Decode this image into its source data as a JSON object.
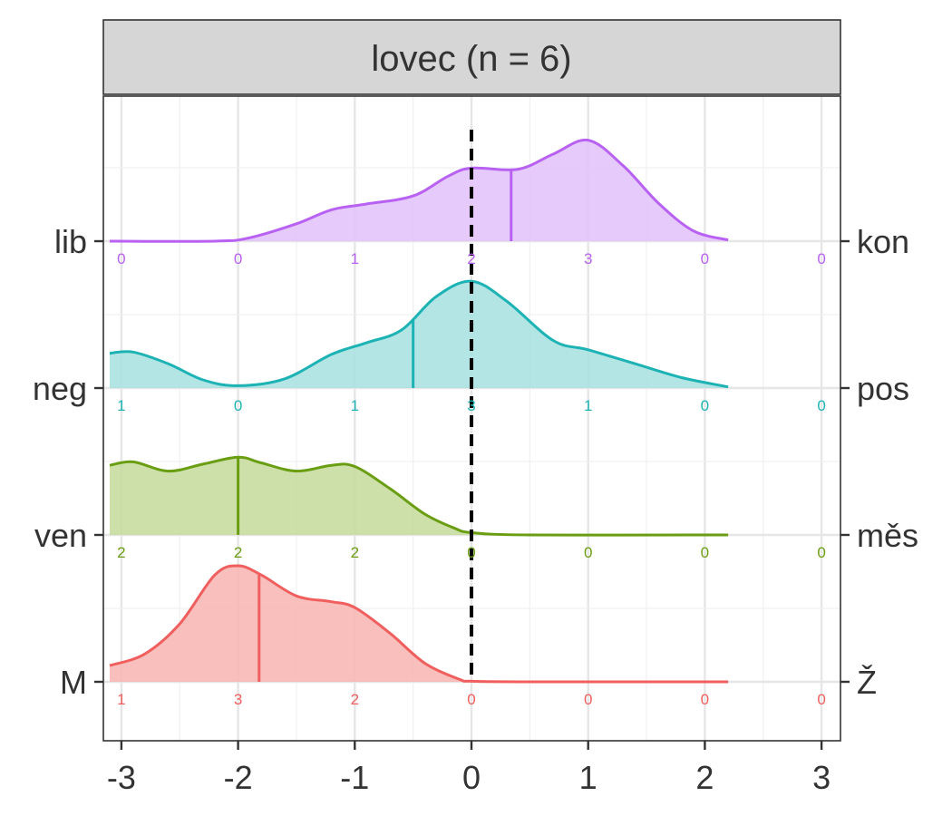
{
  "chart_data": {
    "type": "ridgeline-density",
    "title": "lovec (n = 6)",
    "xlim": [
      -3.1,
      3.15
    ],
    "xticks": [
      -3,
      -2,
      -1,
      0,
      1,
      2,
      3
    ],
    "xtick_labels": [
      "-3",
      "-2",
      "-1",
      "0",
      "1",
      "2",
      "3"
    ],
    "reference_line_x": 0,
    "grid": true,
    "legend": "none",
    "rows": [
      {
        "left_label": "M",
        "right_label": "Ž",
        "color": "#F05E5E",
        "fill": "#F8B4B2",
        "mean": -1.82,
        "counts_x": [
          -3,
          -2,
          -1,
          0,
          1,
          2,
          3
        ],
        "counts": [
          "1",
          "3",
          "2",
          "0",
          "0",
          "0",
          "0"
        ],
        "density": [
          [
            -3.1,
            0.14
          ],
          [
            -2.8,
            0.24
          ],
          [
            -2.5,
            0.5
          ],
          [
            -2.2,
            0.92
          ],
          [
            -2.0,
            1.0
          ],
          [
            -1.8,
            0.92
          ],
          [
            -1.5,
            0.74
          ],
          [
            -1.2,
            0.69
          ],
          [
            -1.0,
            0.64
          ],
          [
            -0.7,
            0.42
          ],
          [
            -0.4,
            0.16
          ],
          [
            -0.1,
            0.02
          ],
          [
            0.0,
            0.005
          ],
          [
            0.5,
            0.0
          ],
          [
            2.2,
            0.0
          ]
        ]
      },
      {
        "left_label": "ven",
        "right_label": "měs",
        "color": "#6A9E12",
        "fill": "#C4DB9B",
        "mean": -2.0,
        "counts_x": [
          -3,
          -2,
          -1,
          0,
          1,
          2,
          3
        ],
        "counts": [
          "2",
          "2",
          "2",
          "0",
          "0",
          "0",
          "0"
        ],
        "density": [
          [
            -3.1,
            0.6
          ],
          [
            -2.9,
            0.63
          ],
          [
            -2.6,
            0.55
          ],
          [
            -2.3,
            0.61
          ],
          [
            -2.0,
            0.67
          ],
          [
            -1.8,
            0.62
          ],
          [
            -1.5,
            0.55
          ],
          [
            -1.2,
            0.6
          ],
          [
            -1.0,
            0.59
          ],
          [
            -0.7,
            0.4
          ],
          [
            -0.4,
            0.18
          ],
          [
            -0.15,
            0.06
          ],
          [
            0.0,
            0.02
          ],
          [
            0.5,
            0.0
          ],
          [
            2.2,
            0.0
          ]
        ]
      },
      {
        "left_label": "neg",
        "right_label": "pos",
        "color": "#1DB3B5",
        "fill": "#A6E1E1",
        "mean": -0.5,
        "counts_x": [
          -3,
          -2,
          -1,
          0,
          1,
          2,
          3
        ],
        "counts": [
          "1",
          "0",
          "1",
          "3",
          "1",
          "0",
          "0"
        ],
        "density": [
          [
            -3.1,
            0.3
          ],
          [
            -2.9,
            0.31
          ],
          [
            -2.6,
            0.21
          ],
          [
            -2.3,
            0.07
          ],
          [
            -2.0,
            0.02
          ],
          [
            -1.6,
            0.08
          ],
          [
            -1.2,
            0.29
          ],
          [
            -0.9,
            0.39
          ],
          [
            -0.6,
            0.5
          ],
          [
            -0.3,
            0.79
          ],
          [
            0.0,
            0.92
          ],
          [
            0.3,
            0.75
          ],
          [
            0.7,
            0.41
          ],
          [
            1.0,
            0.33
          ],
          [
            1.4,
            0.21
          ],
          [
            1.8,
            0.09
          ],
          [
            2.2,
            0.01
          ]
        ]
      },
      {
        "left_label": "lib",
        "right_label": "kon",
        "color": "#B861F2",
        "fill": "#E2C1FA",
        "mean": 0.34,
        "counts_x": [
          -3,
          -2,
          -1,
          0,
          1,
          2,
          3
        ],
        "counts": [
          "0",
          "0",
          "1",
          "2",
          "3",
          "0",
          "0"
        ],
        "density": [
          [
            -3.1,
            0.0
          ],
          [
            -2.2,
            0.0
          ],
          [
            -1.9,
            0.03
          ],
          [
            -1.5,
            0.15
          ],
          [
            -1.2,
            0.27
          ],
          [
            -0.9,
            0.32
          ],
          [
            -0.5,
            0.39
          ],
          [
            -0.2,
            0.56
          ],
          [
            0.0,
            0.63
          ],
          [
            0.4,
            0.62
          ],
          [
            0.7,
            0.75
          ],
          [
            1.0,
            0.87
          ],
          [
            1.3,
            0.65
          ],
          [
            1.6,
            0.33
          ],
          [
            1.9,
            0.09
          ],
          [
            2.2,
            0.01
          ]
        ]
      }
    ]
  }
}
